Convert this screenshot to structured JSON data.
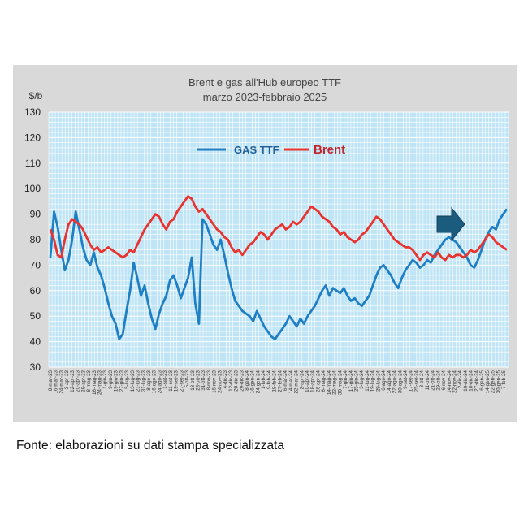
{
  "chart_data": {
    "type": "line",
    "title": "Brent e gas all'Hub europeo TTF",
    "subtitle": "marzo 2023-febbraio 2025",
    "ylabel": "$/b",
    "ylim": [
      30,
      130
    ],
    "yticks": [
      30,
      40,
      50,
      60,
      70,
      80,
      90,
      100,
      110,
      120,
      130
    ],
    "grid": true,
    "legend_position": "top-center",
    "annotation": "arrow pointing right near the end of the series",
    "x_tick_labels": [
      "8-mar-23",
      "16-mar-23",
      "24-mar-23",
      "3-apr-23",
      "12-apr-23",
      "20-apr-23",
      "28-apr-23",
      "8-mag-23",
      "16-mag-23",
      "24-mag-23",
      "1-giu-23",
      "9-giu-23",
      "19-giu-23",
      "27-giu-23",
      "5-lug-23",
      "13-lug-23",
      "21-lug-23",
      "31-lug-23",
      "8-ago-23",
      "16-ago-23",
      "24-ago-23",
      "1-set-23",
      "11-set-23",
      "19-set-23",
      "27-set-23",
      "5-ott-23",
      "13-ott-23",
      "23-ott-23",
      "31-ott-23",
      "8-nov-23",
      "16-nov-23",
      "24-nov-23",
      "4-dic-23",
      "12-dic-23",
      "20-dic-23",
      "29-dic-23",
      "8-gen-24",
      "16-gen-24",
      "24-gen-24",
      "1-feb-24",
      "9-feb-24",
      "19-feb-24",
      "27-feb-24",
      "6-mar-24",
      "14-mar-24",
      "22-mar-24",
      "2-apr-24",
      "10-apr-24",
      "18-apr-24",
      "26-apr-24",
      "6-mag-24",
      "14-mag-24",
      "22-mag-24",
      "30-mag-24",
      "7-giu-24",
      "17-giu-24",
      "25-giu-24",
      "3-lug-24",
      "11-lug-24",
      "19-lug-24",
      "29-lug-24",
      "6-ago-24",
      "14-ago-24",
      "22-ago-24",
      "30-ago-24",
      "9-set-24",
      "17-set-24",
      "25-set-24",
      "3-ott-24",
      "11-ott-24",
      "21-ott-24",
      "29-ott-24",
      "6-nov-24",
      "14-nov-24",
      "22-nov-24",
      "2-dic-24",
      "10-dic-24",
      "18-dic-24",
      "27-dic-24",
      "6-gen-25",
      "14-gen-25",
      "22-gen-25",
      "30-gen-25",
      "7-feb-25"
    ],
    "series": [
      {
        "name": "GAS  TTF",
        "color": "#1f7fc4",
        "values": [
          73,
          91,
          85,
          76,
          68,
          72,
          80,
          91,
          84,
          77,
          72,
          70,
          75,
          69,
          66,
          61,
          55,
          50,
          47,
          41,
          43,
          52,
          60,
          71,
          65,
          58,
          62,
          55,
          49,
          45,
          51,
          55,
          58,
          64,
          66,
          62,
          57,
          61,
          65,
          73,
          55,
          47,
          88,
          86,
          82,
          78,
          76,
          80,
          74,
          67,
          61,
          56,
          54,
          52,
          51,
          50,
          48,
          52,
          49,
          46,
          44,
          42,
          41,
          43,
          45,
          47,
          50,
          48,
          46,
          49,
          47,
          50,
          52,
          54,
          57,
          60,
          62,
          58,
          61,
          60,
          59,
          61,
          58,
          56,
          57,
          55,
          54,
          56,
          58,
          62,
          66,
          69,
          70,
          68,
          66,
          63,
          61,
          65,
          68,
          70,
          72,
          71,
          69,
          70,
          72,
          71,
          74,
          76,
          78,
          80,
          81,
          80,
          79,
          77,
          75,
          73,
          70,
          69,
          72,
          76,
          80,
          83,
          85,
          84,
          88,
          90,
          92
        ]
      },
      {
        "name": "Brent",
        "color": "#e8332e",
        "values": [
          84,
          80,
          74,
          73,
          80,
          86,
          88,
          87,
          86,
          84,
          81,
          78,
          76,
          77,
          75,
          76,
          77,
          76,
          75,
          74,
          73,
          74,
          76,
          75,
          78,
          81,
          84,
          86,
          88,
          90,
          89,
          86,
          84,
          87,
          88,
          91,
          93,
          95,
          97,
          96,
          93,
          91,
          92,
          90,
          88,
          86,
          84,
          83,
          81,
          80,
          77,
          75,
          76,
          74,
          76,
          78,
          79,
          81,
          83,
          82,
          80,
          82,
          84,
          85,
          86,
          84,
          85,
          87,
          86,
          87,
          89,
          91,
          93,
          92,
          91,
          89,
          88,
          87,
          85,
          84,
          82,
          83,
          81,
          80,
          79,
          80,
          82,
          83,
          85,
          87,
          89,
          88,
          86,
          84,
          82,
          80,
          79,
          78,
          77,
          77,
          76,
          74,
          72,
          74,
          75,
          74,
          73,
          75,
          73,
          72,
          74,
          73,
          74,
          74,
          73,
          74,
          76,
          75,
          76,
          78,
          80,
          82,
          81,
          79,
          78,
          77,
          76
        ]
      }
    ]
  },
  "source_note": "Fonte: elaborazioni su dati stampa specializzata"
}
